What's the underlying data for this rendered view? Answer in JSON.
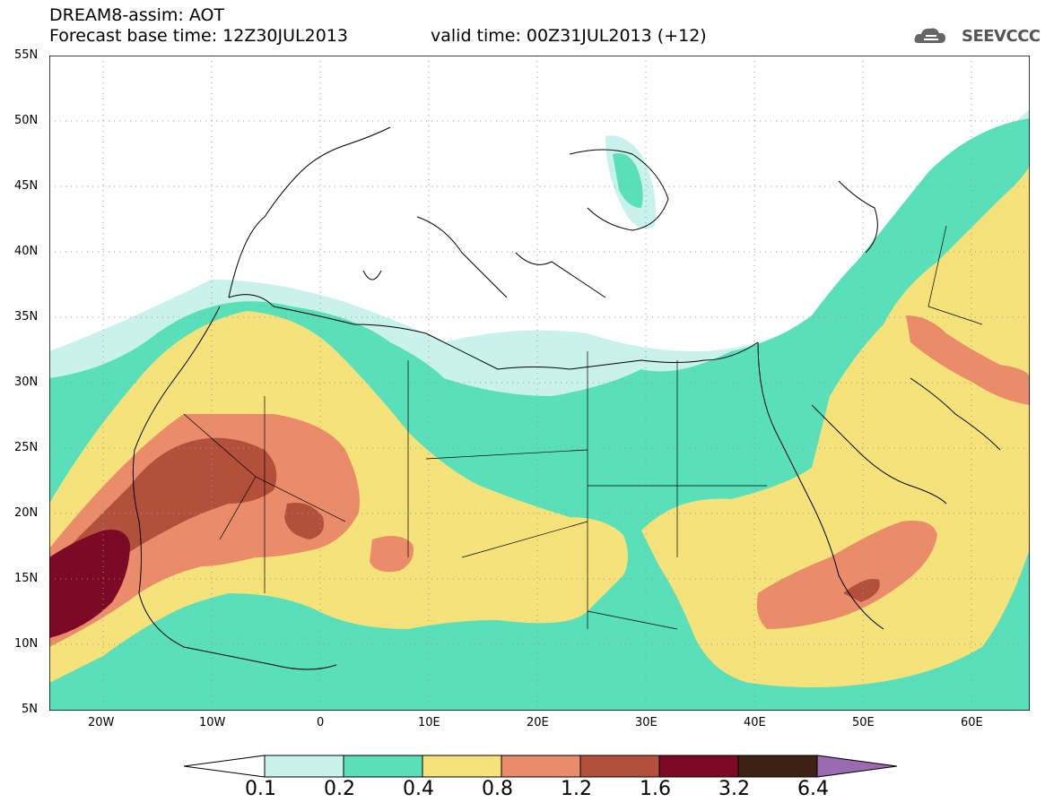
{
  "header": {
    "title": "DREAM8-assim: AOT",
    "base_time": "Forecast base time: 12Z30JUL2013",
    "valid_time": "valid time: 00Z31JUL2013 (+12)",
    "logo_text": "SEEVCCC"
  },
  "map": {
    "lat_labels": [
      "55N",
      "50N",
      "45N",
      "40N",
      "35N",
      "30N",
      "25N",
      "20N",
      "15N",
      "10N",
      "5N"
    ],
    "lon_labels": [
      "20W",
      "10W",
      "0",
      "10E",
      "20E",
      "30E",
      "40E",
      "50E",
      "60E"
    ]
  },
  "legend": {
    "levels": [
      "0.1",
      "0.2",
      "0.4",
      "0.8",
      "1.2",
      "1.6",
      "3.2",
      "6.4"
    ],
    "colors": [
      "#ffffff",
      "#c9f2ec",
      "#59dfb9",
      "#f6e27a",
      "#ea8c6a",
      "#b3503c",
      "#7c0925",
      "#3d2113",
      "#9a6bb0"
    ]
  },
  "colors": {
    "c01": "#c9f2ec",
    "c02": "#59dfb9",
    "c04": "#f6e27a",
    "c08": "#ea8c6a",
    "c12": "#b3503c",
    "c16": "#7c0925"
  }
}
